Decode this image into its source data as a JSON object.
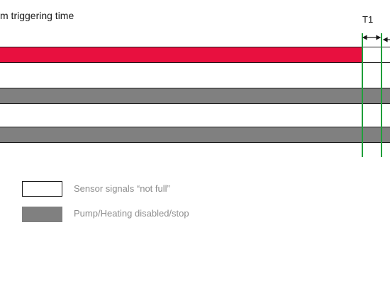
{
  "diagram": {
    "title": "m triggering time",
    "interval_label": "T1"
  },
  "legend": [
    {
      "label": "Sensor signals “not full”",
      "fill": "#ffffff"
    },
    {
      "label": "Pump/Heating disabled/stop",
      "fill": "#808080"
    }
  ],
  "colors": {
    "alarm_bar": "#e8103f",
    "disabled_bar": "#808080",
    "marker_line": "#1f9f3a",
    "outline": "#1a1a1a"
  }
}
